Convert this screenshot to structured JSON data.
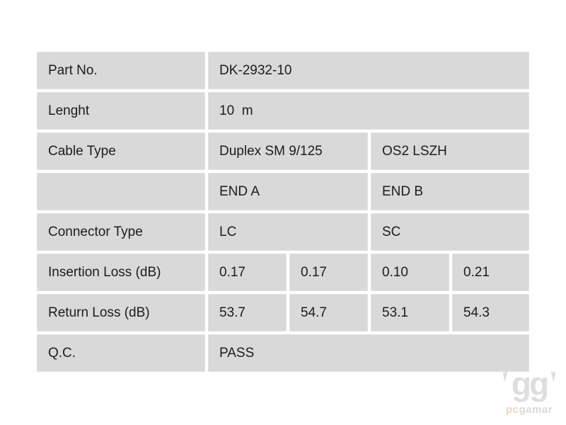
{
  "table": {
    "rows": [
      {
        "label": "Part No.",
        "cells": [
          {
            "text": "DK-2932-10"
          }
        ]
      },
      {
        "label": "Lenght",
        "cells": [
          {
            "text": "10  m"
          }
        ]
      },
      {
        "label": "Cable Type",
        "cells": [
          {
            "text": "Duplex SM 9/125"
          },
          {
            "text": "OS2 LSZH"
          }
        ]
      },
      {
        "label": "",
        "cells": [
          {
            "text": "END A"
          },
          {
            "text": "END B"
          }
        ]
      },
      {
        "label": "Connector Type",
        "cells": [
          {
            "text": "LC"
          },
          {
            "text": "SC"
          }
        ]
      },
      {
        "label": "Insertion Loss (dB)",
        "cells": [
          {
            "text": "0.17"
          },
          {
            "text": "0.17"
          },
          {
            "text": "0.10"
          },
          {
            "text": "0.21"
          }
        ]
      },
      {
        "label": "Return Loss (dB)",
        "cells": [
          {
            "text": "53.7"
          },
          {
            "text": "54.7"
          },
          {
            "text": "53.1"
          },
          {
            "text": "54.3"
          }
        ]
      },
      {
        "label": "Q.C.",
        "cells": [
          {
            "text": "PASS"
          }
        ]
      }
    ]
  },
  "watermark": {
    "logo_text": "gg",
    "brand_prefix": "pc",
    "brand_suffix": "gamar"
  },
  "colors": {
    "cell_bg": "#d9d9d9",
    "text": "#1c1c1c",
    "watermark_gray": "#dedede",
    "watermark_pink": "#eed2cb",
    "page_bg": "#ffffff"
  }
}
